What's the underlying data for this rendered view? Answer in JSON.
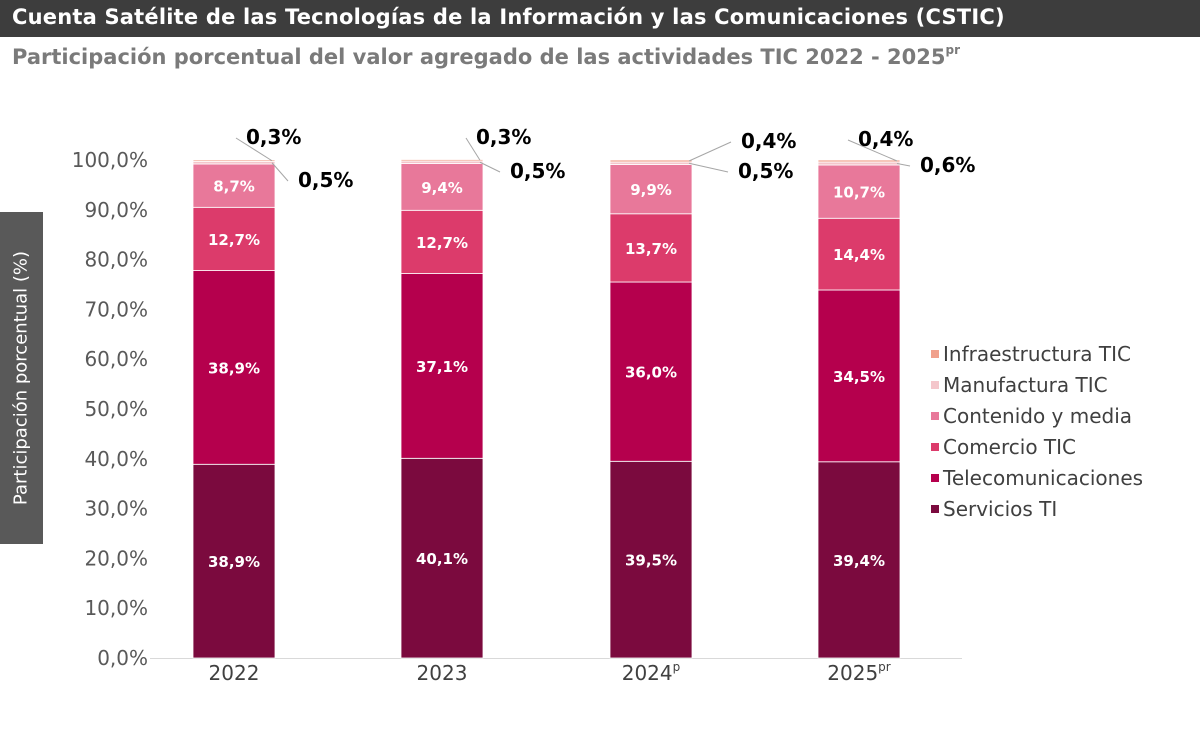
{
  "header": {
    "title": "Cuenta Satélite de las Tecnologías de la Información y las Comunicaciones (CSTIC)",
    "subtitle": "Participación porcentual del valor agregado de las actividades TIC 2022 - 2025",
    "subtitle_sup": "pr"
  },
  "chart_data": {
    "type": "bar",
    "stacked": true,
    "ylabel": "Participación porcentual (%)",
    "ylim": [
      0,
      100
    ],
    "yticks": [
      "0,0%",
      "10,0%",
      "20,0%",
      "30,0%",
      "40,0%",
      "50,0%",
      "60,0%",
      "70,0%",
      "80,0%",
      "90,0%",
      "100,0%"
    ],
    "categories": [
      {
        "label": "2022",
        "sup": ""
      },
      {
        "label": "2023",
        "sup": ""
      },
      {
        "label": "2024",
        "sup": "p"
      },
      {
        "label": "2025",
        "sup": "pr"
      }
    ],
    "series": [
      {
        "name": "Servicios TI",
        "color": "#7b0a3e",
        "values": [
          38.9,
          40.1,
          39.5,
          39.4
        ],
        "labels": [
          "38,9%",
          "40,1%",
          "39,5%",
          "39,4%"
        ]
      },
      {
        "name": "Telecomunicaciones",
        "color": "#b5004d",
        "values": [
          38.9,
          37.1,
          36.0,
          34.5
        ],
        "labels": [
          "38,9%",
          "37,1%",
          "36,0%",
          "34,5%"
        ]
      },
      {
        "name": "Comercio TIC",
        "color": "#dc3b6b",
        "values": [
          12.7,
          12.7,
          13.7,
          14.4
        ],
        "labels": [
          "12,7%",
          "12,7%",
          "13,7%",
          "14,4%"
        ]
      },
      {
        "name": "Contenido y media",
        "color": "#e8789a",
        "values": [
          8.7,
          9.4,
          9.9,
          10.7
        ],
        "labels": [
          "8,7%",
          "9,4%",
          "9,9%",
          "10,7%"
        ]
      },
      {
        "name": "Manufactura TIC",
        "color": "#f4c6cb",
        "values": [
          0.5,
          0.5,
          0.5,
          0.6
        ],
        "labels": [
          "0,5%",
          "0,5%",
          "0,5%",
          "0,6%"
        ]
      },
      {
        "name": "Infraestructura TIC",
        "color": "#f0a08c",
        "values": [
          0.3,
          0.3,
          0.4,
          0.4
        ],
        "labels": [
          "0,3%",
          "0,3%",
          "0,4%",
          "0,4%"
        ]
      }
    ],
    "legend_order": [
      "Infraestructura TIC",
      "Manufactura TIC",
      "Contenido y media",
      "Comercio TIC",
      "Telecomunicaciones",
      "Servicios TI"
    ],
    "legend_position": "right",
    "grid": false
  }
}
